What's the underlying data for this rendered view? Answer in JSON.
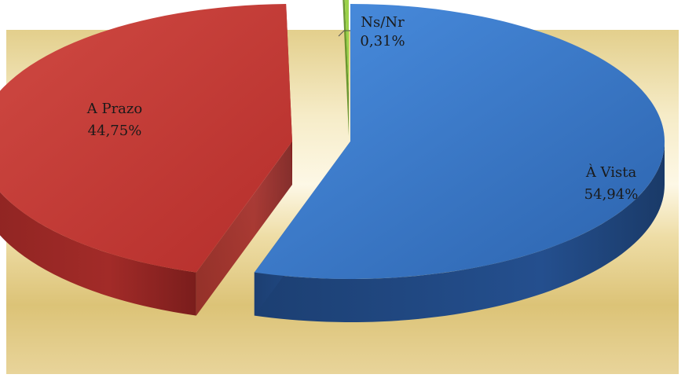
{
  "chart_data": {
    "type": "pie",
    "style": "3d-exploded",
    "categories": [
      "À Vista",
      "A Prazo",
      "Ns/Nr"
    ],
    "values": [
      54.94,
      44.75,
      0.31
    ],
    "labels": [
      "54,94%",
      "44,75%",
      "0,31%"
    ],
    "title": "",
    "legend": "none",
    "colors": [
      "#3d7ed0",
      "#c93a36",
      "#8cc63f"
    ]
  }
}
